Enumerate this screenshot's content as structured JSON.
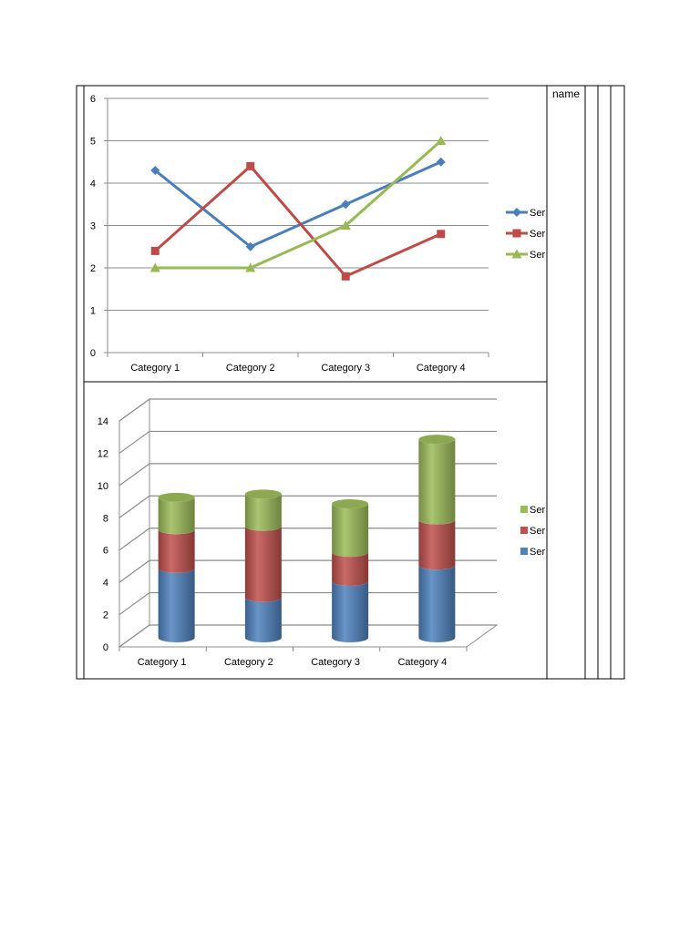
{
  "table": {
    "header_cell": "name"
  },
  "chart_data": [
    {
      "type": "line",
      "categories": [
        "Category 1",
        "Category 2",
        "Category 3",
        "Category 4"
      ],
      "ylim": [
        0,
        6
      ],
      "yticks": [
        0,
        1,
        2,
        3,
        4,
        5,
        6
      ],
      "grid": true,
      "legend": "right",
      "series": [
        {
          "name": "Ser",
          "values": [
            4.3,
            2.5,
            3.5,
            4.5
          ],
          "color": "#4a7ebb",
          "marker": "diamond"
        },
        {
          "name": "Ser",
          "values": [
            2.4,
            4.4,
            1.8,
            2.8
          ],
          "color": "#be4b48",
          "marker": "square"
        },
        {
          "name": "Ser",
          "values": [
            2,
            2,
            3,
            5
          ],
          "color": "#98b954",
          "marker": "triangle"
        }
      ]
    },
    {
      "type": "bar",
      "stacked": true,
      "style": "3d-cylinder",
      "categories": [
        "Category 1",
        "Category 2",
        "Category 3",
        "Category 4"
      ],
      "ylim": [
        0,
        14
      ],
      "yticks": [
        0,
        2,
        4,
        6,
        8,
        10,
        12,
        14
      ],
      "grid": true,
      "legend": "right",
      "series": [
        {
          "name": "Ser",
          "values": [
            4.3,
            2.5,
            3.5,
            4.5
          ],
          "color": "#4f81bd"
        },
        {
          "name": "Ser",
          "values": [
            2.4,
            4.4,
            1.8,
            2.8
          ],
          "color": "#c0504d"
        },
        {
          "name": "Ser",
          "values": [
            2,
            2,
            3,
            5
          ],
          "color": "#9bbb59"
        }
      ]
    }
  ]
}
